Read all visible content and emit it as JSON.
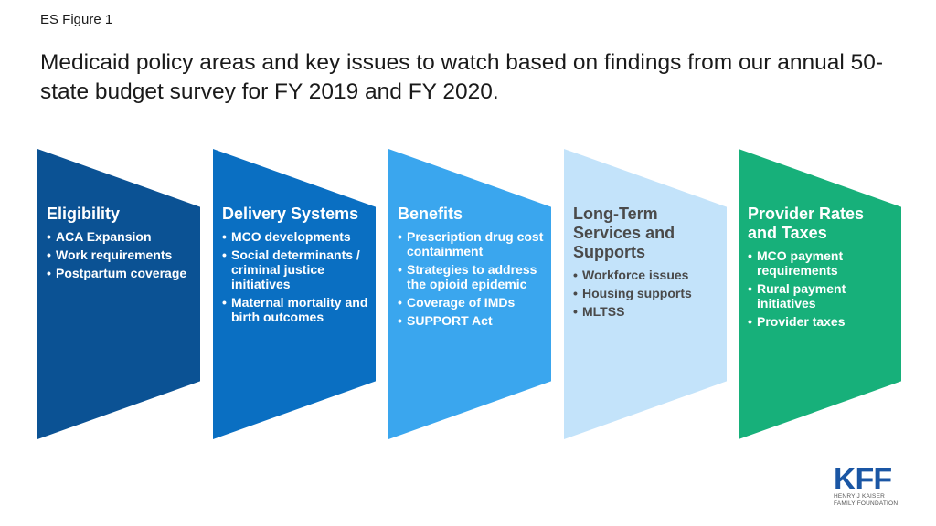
{
  "figure_label": "ES Figure 1",
  "title": "Medicaid policy areas and key issues to watch based on findings from our annual 50-state budget survey for FY 2019 and FY 2020.",
  "colors": {
    "eligibility": "#0b5294",
    "delivery_systems": "#0a6fc2",
    "benefits": "#3aa6ee",
    "ltss": "#c3e3fa",
    "provider_rates": "#17b07a",
    "logo": "#1a56a4"
  },
  "areas": [
    {
      "title": "Eligibility",
      "items": [
        "ACA Expansion",
        "Work requirements",
        "Postpartum coverage"
      ]
    },
    {
      "title": "Delivery Systems",
      "items": [
        "MCO developments",
        "Social determinants / criminal justice initiatives",
        "Maternal mortality and birth outcomes"
      ]
    },
    {
      "title": "Benefits",
      "items": [
        "Prescription drug cost containment",
        "Strategies to address the opioid epidemic",
        "Coverage of IMDs",
        "SUPPORT Act"
      ]
    },
    {
      "title": "Long-Term Services and Supports",
      "items": [
        "Workforce issues",
        "Housing supports",
        "MLTSS"
      ]
    },
    {
      "title": "Provider Rates and Taxes",
      "items": [
        "MCO payment requirements",
        "Rural payment initiatives",
        "Provider taxes"
      ]
    }
  ],
  "logo": {
    "mark": "KFF",
    "line1": "HENRY J KAISER",
    "line2": "FAMILY FOUNDATION"
  }
}
